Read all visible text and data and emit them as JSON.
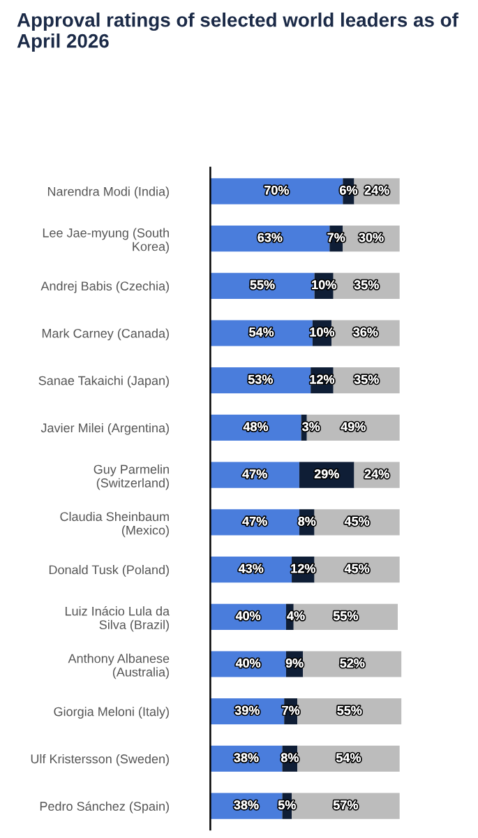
{
  "chart_data": {
    "type": "bar",
    "orientation": "horizontal",
    "stacked": true,
    "title": "Approval ratings of selected world leaders as of April 2026",
    "categories": [
      "Narendra Modi (India)",
      "Lee Jae-myung (South Korea)",
      "Andrej Babis (Czechia)",
      "Mark Carney (Canada)",
      "Sanae Takaichi (Japan)",
      "Javier Milei (Argentina)",
      "Guy Parmelin (Switzerland)",
      "Claudia Sheinbaum (Mexico)",
      "Donald Tusk (Poland)",
      "Luiz Inácio Lula da Silva (Brazil)",
      "Anthony Albanese (Australia)",
      "Giorgia Meloni (Italy)",
      "Ulf Kristersson (Sweden)",
      "Pedro Sánchez (Spain)"
    ],
    "series": [
      {
        "color": "#4a7ddc",
        "values": [
          70,
          63,
          55,
          54,
          53,
          48,
          47,
          47,
          43,
          40,
          40,
          39,
          38,
          38
        ],
        "value_labels": [
          "70%",
          "63%",
          "55%",
          "54%",
          "53%",
          "48%",
          "47%",
          "47%",
          "43%",
          "40%",
          "40%",
          "39%",
          "38%",
          "38%"
        ]
      },
      {
        "color": "#0f1e36",
        "values": [
          6,
          7,
          10,
          10,
          12,
          3,
          29,
          8,
          12,
          4,
          9,
          7,
          8,
          5
        ],
        "value_labels": [
          "6%",
          "7%",
          "10%",
          "10%",
          "12%",
          "3%",
          "29%",
          "8%",
          "12%",
          "4%",
          "9%",
          "7%",
          "8%",
          "5%"
        ]
      },
      {
        "color": "#bcbcbc",
        "values": [
          24,
          30,
          35,
          36,
          35,
          49,
          24,
          45,
          45,
          55,
          52,
          55,
          54,
          57
        ],
        "value_labels": [
          "24%",
          "30%",
          "35%",
          "36%",
          "35%",
          "49%",
          "24%",
          "45%",
          "45%",
          "55%",
          "52%",
          "55%",
          "54%",
          "57%"
        ]
      }
    ],
    "tick_labels": "y"
  }
}
